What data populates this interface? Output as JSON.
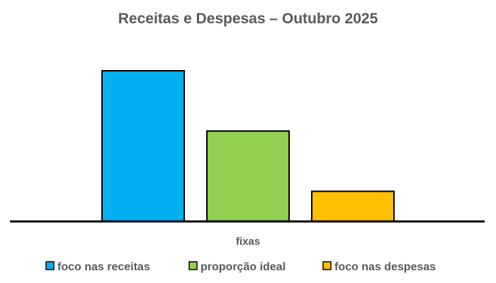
{
  "chart_data": {
    "type": "bar",
    "title": "Receitas e Despesas – Outubro 2025",
    "categories": [
      "fixas"
    ],
    "series": [
      {
        "name": "foco nas receitas",
        "color": "#00B0F0",
        "values": [
          100
        ]
      },
      {
        "name": "proporção ideal",
        "color": "#92D050",
        "values": [
          60
        ]
      },
      {
        "name": "foco nas despesas",
        "color": "#FFC000",
        "values": [
          20
        ]
      }
    ],
    "xlabel": "",
    "ylabel": "",
    "ylim": [
      0,
      100
    ],
    "grid": false,
    "legend_position": "bottom"
  }
}
